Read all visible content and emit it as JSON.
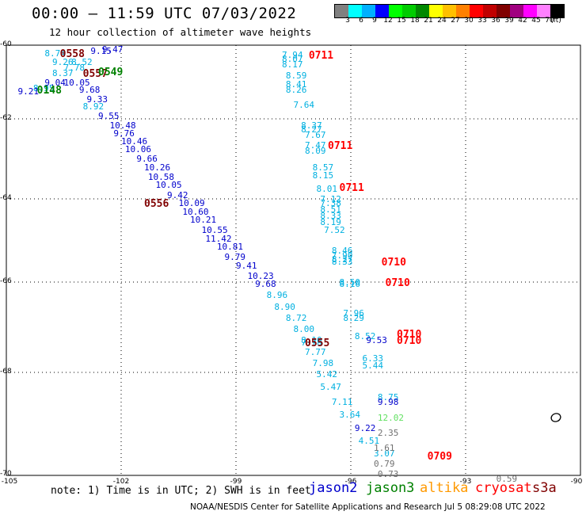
{
  "title": "00:00 – 11:59 UTC 07/03/2022",
  "subtitle": "12 hour collection of altimeter wave heights",
  "colorbar": {
    "colors": [
      "#808080",
      "#00ffff",
      "#00b0ff",
      "#0000ff",
      "#00ff00",
      "#00cc00",
      "#008800",
      "#ffff00",
      "#ffc000",
      "#ff8000",
      "#ff0000",
      "#c00000",
      "#800000",
      "#a00080",
      "#ff00ff",
      "#ff80ff",
      "#000000"
    ],
    "labels": [
      "3",
      "6",
      "9",
      "12",
      "15",
      "18",
      "21",
      "24",
      "27",
      "30",
      "33",
      "36",
      "39",
      "42",
      "45",
      "70",
      "(ft)"
    ]
  },
  "axes": {
    "lat_labels": [
      "-60",
      "-62",
      "-64",
      "-66",
      "-68",
      "-70"
    ],
    "lon_labels": [
      "-105",
      "-102",
      "-99",
      "-96",
      "-93",
      "-90"
    ],
    "lat_range": [
      -70,
      -60
    ],
    "lon_range": [
      -105,
      -90
    ]
  },
  "satellite_colors": {
    "jason2": "#0000cc",
    "jason3": "#008000",
    "altika": "#ff9900",
    "cryosat": "#ff0000",
    "s3a": "#800000"
  },
  "tracks": [
    {
      "sat": "jason2",
      "times": [
        {
          "t": "0556",
          "lon": -101.4,
          "lat": -64.0,
          "color": "#800000"
        }
      ],
      "points": [
        {
          "v": "9.47",
          "lon": -102.5,
          "lat": -59.9
        },
        {
          "v": "9.15",
          "lon": -102.8,
          "lat": -60.05
        },
        {
          "v": "9.21",
          "lon": -104.7,
          "lat": -61.15
        },
        {
          "v": "9.04",
          "lon": -104.0,
          "lat": -60.9
        },
        {
          "v": "10.05",
          "lon": -103.5,
          "lat": -60.9
        },
        {
          "v": "9.68",
          "lon": -103.1,
          "lat": -61.1
        },
        {
          "v": "9.33",
          "lon": -102.9,
          "lat": -61.35
        },
        {
          "v": "9.55",
          "lon": -102.6,
          "lat": -61.8
        },
        {
          "v": "10.48",
          "lon": -102.3,
          "lat": -62.05
        },
        {
          "v": "9.76",
          "lon": -102.2,
          "lat": -62.25
        },
        {
          "v": "10.46",
          "lon": -102.0,
          "lat": -62.45
        },
        {
          "v": "10.06",
          "lon": -101.9,
          "lat": -62.65
        },
        {
          "v": "9.66",
          "lon": -101.6,
          "lat": -62.9
        },
        {
          "v": "10.26",
          "lon": -101.4,
          "lat": -63.1
        },
        {
          "v": "10.58",
          "lon": -101.3,
          "lat": -63.35
        },
        {
          "v": "10.05",
          "lon": -101.1,
          "lat": -63.55
        },
        {
          "v": "9.42",
          "lon": -100.8,
          "lat": -63.8
        },
        {
          "v": "10.09",
          "lon": -100.5,
          "lat": -64.0
        },
        {
          "v": "10.60",
          "lon": -100.4,
          "lat": -64.2
        },
        {
          "v": "10.21",
          "lon": -100.2,
          "lat": -64.4
        },
        {
          "v": "10.55",
          "lon": -99.9,
          "lat": -64.65
        },
        {
          "v": "11.42",
          "lon": -99.8,
          "lat": -64.85
        },
        {
          "v": "10.81",
          "lon": -99.5,
          "lat": -65.05
        },
        {
          "v": "9.79",
          "lon": -99.3,
          "lat": -65.3
        },
        {
          "v": "9.41",
          "lon": -99.0,
          "lat": -65.5
        },
        {
          "v": "10.23",
          "lon": -98.7,
          "lat": -65.75
        },
        {
          "v": "9.68",
          "lon": -98.5,
          "lat": -65.95
        },
        {
          "v": "9.53",
          "lon": -95.6,
          "lat": -67.2
        },
        {
          "v": "9.98",
          "lon": -95.3,
          "lat": -68.5
        },
        {
          "v": "9.22",
          "lon": -95.9,
          "lat": -69.0
        }
      ]
    },
    {
      "sat": "cryosat",
      "times": [
        {
          "t": "0711",
          "lon": -97.1,
          "lat": -60.15
        },
        {
          "t": "0711",
          "lon": -96.6,
          "lat": -62.55
        },
        {
          "t": "0711",
          "lon": -96.3,
          "lat": -63.6
        },
        {
          "t": "0710",
          "lon": -95.2,
          "lat": -65.4
        },
        {
          "t": "0710",
          "lon": -95.1,
          "lat": -65.9
        },
        {
          "t": "0710",
          "lon": -94.8,
          "lat": -67.05
        },
        {
          "t": "0710",
          "lon": -94.8,
          "lat": -67.2
        },
        {
          "t": "0709",
          "lon": -94.0,
          "lat": -69.55
        }
      ],
      "points": []
    },
    {
      "sat": "s3a",
      "times": [
        {
          "t": "0558",
          "lon": -103.6,
          "lat": -60.1
        },
        {
          "t": "0557",
          "lon": -103.0,
          "lat": -60.65
        },
        {
          "t": "0555",
          "lon": -97.2,
          "lat": -67.25
        }
      ],
      "points": [
        {
          "v": "2.35",
          "lon": -95.3,
          "lat": -69.1
        },
        {
          "v": "1.61",
          "lon": -95.4,
          "lat": -69.4
        },
        {
          "v": "0.79",
          "lon": -95.4,
          "lat": -69.7
        },
        {
          "v": "0.73",
          "lon": -95.3,
          "lat": -69.9
        },
        {
          "v": "0.59",
          "lon": -92.2,
          "lat": -70.0
        }
      ]
    },
    {
      "sat": "jason3",
      "times": [
        {
          "t": "0549",
          "lon": -102.6,
          "lat": -60.6
        },
        {
          "t": "0148",
          "lon": -104.2,
          "lat": -61.1
        }
      ],
      "points": [
        {
          "v": "12.02",
          "lon": -95.3,
          "lat": -68.8
        }
      ]
    }
  ],
  "cyan_points": [
    {
      "v": "8.74",
      "lon": -104.0,
      "lat": -60.1
    },
    {
      "v": "9.26",
      "lon": -103.8,
      "lat": -60.35
    },
    {
      "v": "8.52",
      "lon": -103.3,
      "lat": -60.35
    },
    {
      "v": "7.78",
      "lon": -103.5,
      "lat": -60.5
    },
    {
      "v": "8.37",
      "lon": -103.8,
      "lat": -60.65
    },
    {
      "v": "8.95",
      "lon": -104.3,
      "lat": -61.05
    },
    {
      "v": "8.92",
      "lon": -103.0,
      "lat": -61.55
    },
    {
      "v": "7.94",
      "lon": -97.8,
      "lat": -60.15
    },
    {
      "v": "8.07",
      "lon": -97.8,
      "lat": -60.25
    },
    {
      "v": "8.17",
      "lon": -97.8,
      "lat": -60.4
    },
    {
      "v": "8.59",
      "lon": -97.7,
      "lat": -60.7
    },
    {
      "v": "8.41",
      "lon": -97.7,
      "lat": -60.95
    },
    {
      "v": "8.26",
      "lon": -97.7,
      "lat": -61.1
    },
    {
      "v": "7.64",
      "lon": -97.5,
      "lat": -61.5
    },
    {
      "v": "8.37",
      "lon": -97.3,
      "lat": -62.05
    },
    {
      "v": "8.27",
      "lon": -97.3,
      "lat": -62.15
    },
    {
      "v": "7.67",
      "lon": -97.2,
      "lat": -62.3
    },
    {
      "v": "7.47",
      "lon": -97.2,
      "lat": -62.55
    },
    {
      "v": "8.09",
      "lon": -97.2,
      "lat": -62.7
    },
    {
      "v": "8.57",
      "lon": -97.0,
      "lat": -63.1
    },
    {
      "v": "8.15",
      "lon": -97.0,
      "lat": -63.3
    },
    {
      "v": "8.01",
      "lon": -96.9,
      "lat": -63.65
    },
    {
      "v": "7.12",
      "lon": -96.8,
      "lat": -63.9
    },
    {
      "v": "7.38",
      "lon": -96.8,
      "lat": -64.0
    },
    {
      "v": "8.51",
      "lon": -96.8,
      "lat": -64.15
    },
    {
      "v": "8.33",
      "lon": -96.8,
      "lat": -64.3
    },
    {
      "v": "8.19",
      "lon": -96.8,
      "lat": -64.45
    },
    {
      "v": "7.52",
      "lon": -96.7,
      "lat": -64.65
    },
    {
      "v": "8.46",
      "lon": -96.5,
      "lat": -65.15
    },
    {
      "v": "7.90",
      "lon": -96.5,
      "lat": -65.25
    },
    {
      "v": "8.27",
      "lon": -96.5,
      "lat": -65.35
    },
    {
      "v": "8.33",
      "lon": -96.5,
      "lat": -65.4
    },
    {
      "v": "8.50",
      "lon": -96.3,
      "lat": -65.9
    },
    {
      "v": "8.16",
      "lon": -96.3,
      "lat": -65.95
    },
    {
      "v": "7.96",
      "lon": -96.2,
      "lat": -66.6
    },
    {
      "v": "8.29",
      "lon": -96.2,
      "lat": -66.7
    },
    {
      "v": "8.52",
      "lon": -95.9,
      "lat": -67.1
    },
    {
      "v": "8.96",
      "lon": -98.2,
      "lat": -66.2
    },
    {
      "v": "8.90",
      "lon": -98.0,
      "lat": -66.45
    },
    {
      "v": "8.72",
      "lon": -97.7,
      "lat": -66.7
    },
    {
      "v": "8.00",
      "lon": -97.5,
      "lat": -66.95
    },
    {
      "v": "8.10",
      "lon": -97.3,
      "lat": -67.2
    },
    {
      "v": "7.78",
      "lon": -97.3,
      "lat": -67.25
    },
    {
      "v": "7.77",
      "lon": -97.2,
      "lat": -67.45
    },
    {
      "v": "7.98",
      "lon": -97.0,
      "lat": -67.7
    },
    {
      "v": "5.42",
      "lon": -96.9,
      "lat": -67.95
    },
    {
      "v": "5.47",
      "lon": -96.8,
      "lat": -68.2
    },
    {
      "v": "7.11",
      "lon": -96.5,
      "lat": -68.5
    },
    {
      "v": "3.64",
      "lon": -96.3,
      "lat": -68.75
    },
    {
      "v": "6.33",
      "lon": -95.7,
      "lat": -67.6
    },
    {
      "v": "5.44",
      "lon": -95.7,
      "lat": -67.75
    },
    {
      "v": "8.75",
      "lon": -95.3,
      "lat": -68.4
    },
    {
      "v": "4.51",
      "lon": -95.8,
      "lat": -69.25
    },
    {
      "v": "3.07",
      "lon": -95.4,
      "lat": -69.5
    }
  ],
  "note": "note: 1) Time is in UTC; 2) SWH is in feet",
  "legend": [
    "jason2",
    "jason3",
    "altika",
    "cryosat",
    "s3a"
  ],
  "credit": "NOAA/NESDIS Center for Satellite Applications and Research   Jul  5 08:29:08 UTC 2022"
}
